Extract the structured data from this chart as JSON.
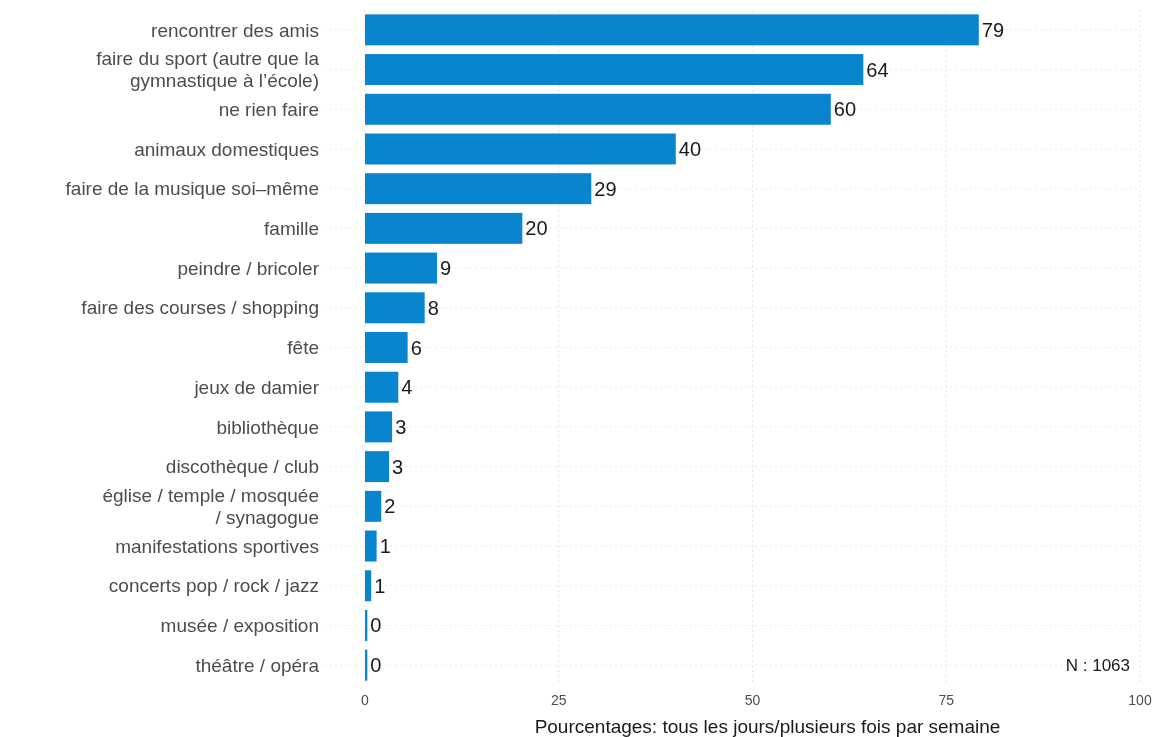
{
  "chart_data": {
    "type": "bar",
    "orientation": "horizontal",
    "xlabel": "Pourcentages: tous les jours/plusieurs fois par semaine",
    "categories": [
      "rencontrer des amis",
      "faire du sport (autre que la\ngymnastique à l’école)",
      "ne rien faire",
      "animaux domestiques",
      "faire de la musique soi–même",
      "famille",
      "peindre / bricoler",
      "faire des courses / shopping",
      "fête",
      "jeux de damier",
      "bibliothèque",
      "discothèque / club",
      "église / temple / mosquée\n/ synagogue",
      "manifestations sportives",
      "concerts pop / rock / jazz",
      "musée / exposition",
      "théâtre  / opéra"
    ],
    "values": [
      79.2,
      64.3,
      60.1,
      40.1,
      29.2,
      20.3,
      9.3,
      7.7,
      5.5,
      4.3,
      3.5,
      3.1,
      2.1,
      1.5,
      0.8,
      0.3,
      0.3
    ],
    "value_labels": [
      "79",
      "64",
      "60",
      "40",
      "29",
      "20",
      "9",
      "8",
      "6",
      "4",
      "3",
      "3",
      "2",
      "1",
      "1",
      "0",
      "0"
    ],
    "color": "#0984cf",
    "xlim": [
      0,
      100
    ],
    "xticks": [
      0,
      25,
      50,
      75,
      100
    ],
    "grid": true,
    "annotations": [
      "N : 1063"
    ]
  }
}
